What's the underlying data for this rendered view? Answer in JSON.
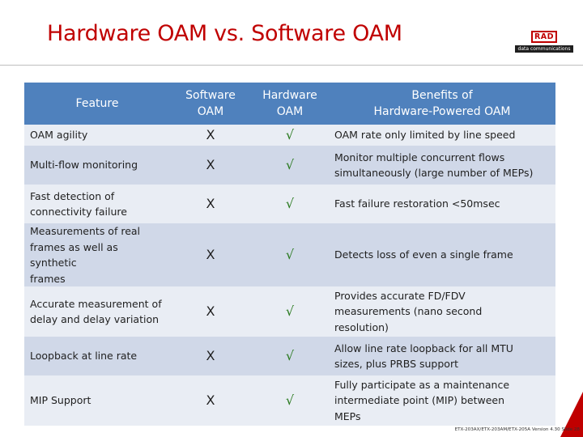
{
  "slide": {
    "title": "Hardware OAM vs. Software OAM",
    "logo_text": "RAD",
    "logo_tagline": "data communications",
    "footer": "ETX-203AX/ETX-203AM/ETX-205A Version 4.30 Slide 28"
  },
  "table": {
    "headers": {
      "feature": "Feature",
      "software": [
        "Software",
        "OAM"
      ],
      "hardware": [
        "Hardware",
        "OAM"
      ],
      "benefits": [
        "Benefits of",
        "Hardware-Powered OAM"
      ]
    },
    "rows": [
      {
        "feature": [
          "OAM agility"
        ],
        "software": "X",
        "hardware": "√",
        "benefit": [
          "OAM rate only limited by line speed"
        ]
      },
      {
        "feature": [
          "Multi-flow monitoring"
        ],
        "software": "X",
        "hardware": "√",
        "benefit": [
          "Monitor multiple concurrent flows",
          "simultaneously (large number of MEPs)"
        ]
      },
      {
        "feature": [
          "Fast detection of",
          "connectivity failure"
        ],
        "software": "X",
        "hardware": "√",
        "benefit": [
          "Fast failure restoration <50msec"
        ]
      },
      {
        "feature": [
          "Measurements of real",
          "frames as well as synthetic",
          "frames"
        ],
        "software": "X",
        "hardware": "√",
        "benefit": [
          "Detects loss of even a single frame"
        ]
      },
      {
        "feature": [
          "Accurate measurement of",
          "delay and delay variation"
        ],
        "software": "X",
        "hardware": "√",
        "benefit": [
          "Provides accurate FD/FDV",
          "measurements (nano second",
          "resolution)"
        ]
      },
      {
        "feature": [
          "Loopback at line rate"
        ],
        "software": "X",
        "hardware": "√",
        "benefit": [
          "Allow line rate loopback for all MTU",
          "sizes, plus PRBS support"
        ]
      },
      {
        "feature": [
          "MIP Support"
        ],
        "software": "X",
        "hardware": "√",
        "benefit": [
          "Fully participate as a maintenance",
          "intermediate point (MIP) between",
          "MEPs"
        ]
      }
    ]
  },
  "colors": {
    "title": "#c00000",
    "header_bg": "#4f81bd",
    "row_light": "#e9edf4",
    "row_dark": "#d0d8e8",
    "check": "#2a7a1f"
  }
}
